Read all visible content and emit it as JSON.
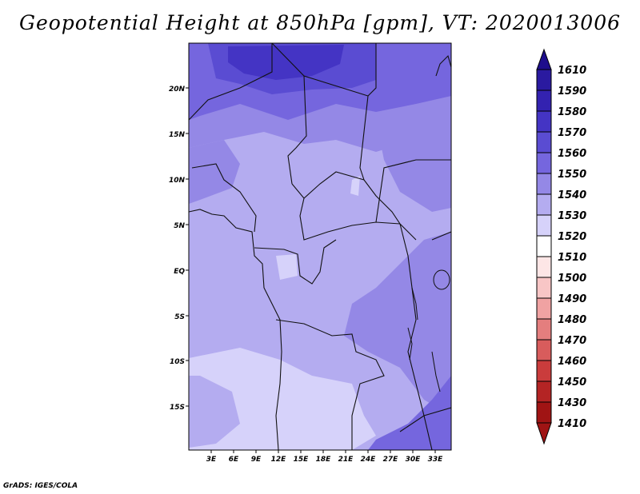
{
  "title": "Geopotential Height at 850hPa [gpm], VT: 2020013006",
  "credit": "GrADS: IGES/COLA",
  "map": {
    "lat_labels": [
      "20N",
      "15N",
      "10N",
      "5N",
      "EQ",
      "5S",
      "10S",
      "15S"
    ],
    "lon_labels": [
      "3E",
      "6E",
      "9E",
      "12E",
      "15E",
      "18E",
      "21E",
      "24E",
      "27E",
      "30E",
      "33E"
    ]
  },
  "colorbar": {
    "levels": [
      "1610",
      "1590",
      "1580",
      "1570",
      "1560",
      "1550",
      "1540",
      "1530",
      "1520",
      "1510",
      "1500",
      "1490",
      "1480",
      "1470",
      "1460",
      "1450",
      "1430",
      "1410"
    ],
    "colors": {
      "top_arrow": "#1e0e8c",
      "c1590": "#2a1aa0",
      "c1580": "#3322b0",
      "c1570": "#4434c4",
      "c1560": "#5a4cd2",
      "c1550": "#7566de",
      "c1540": "#9488e6",
      "c1530": "#b4acf0",
      "c1520": "#d6d2fa",
      "c1510": "#ffffff",
      "c1500": "#fde6e6",
      "c1490": "#f8c6c6",
      "c1480": "#f0a2a2",
      "c1470": "#e47e7e",
      "c1460": "#d85c5c",
      "c1450": "#ca3c3c",
      "c1430": "#b42424",
      "bottom_arrow": "#a01414"
    }
  }
}
